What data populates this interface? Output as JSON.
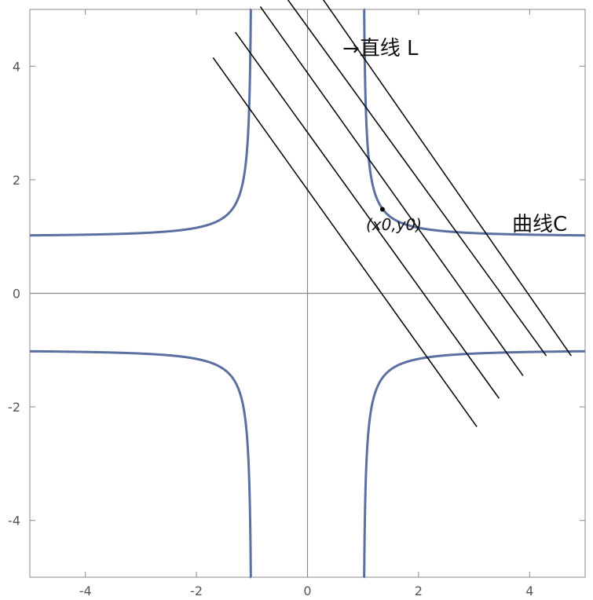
{
  "chart_data": {
    "type": "line",
    "xlim": [
      -5,
      5
    ],
    "ylim": [
      -5,
      5
    ],
    "x_ticks": [
      -4,
      -2,
      0,
      2,
      4
    ],
    "y_ticks": [
      4,
      2,
      0,
      -2,
      -4
    ],
    "x_tick_labels": [
      "-4",
      "-2",
      "0",
      "2",
      "4"
    ],
    "y_tick_labels": [
      "4",
      "2",
      "0",
      "-2",
      "-4"
    ],
    "grid": false,
    "frame": true,
    "series": [
      {
        "curve": "y = |x| / sqrt(x^2 - 1)",
        "branches": [
          {
            "x_from": -5,
            "x_to": -1.02,
            "sign": 1
          },
          {
            "x_from": 1.02,
            "x_to": 5,
            "sign": 1
          },
          {
            "x_from": -5,
            "x_to": -1.02,
            "sign": -1
          },
          {
            "x_from": 1.02,
            "x_to": 5,
            "sign": -1
          }
        ],
        "color": "#5b70a0"
      }
    ],
    "parallel_lines": [
      {
        "x1": 0.05,
        "y1": 5.5,
        "x2": 4.75,
        "y2": -1.1
      },
      {
        "x1": -0.45,
        "y1": 5.3,
        "x2": 4.3,
        "y2": -1.1
      },
      {
        "x1": -0.85,
        "y1": 5.05,
        "x2": 3.88,
        "y2": -1.45
      },
      {
        "x1": -1.3,
        "y1": 4.6,
        "x2": 3.45,
        "y2": -1.85
      },
      {
        "x1": -1.7,
        "y1": 4.15,
        "x2": 3.05,
        "y2": -2.35
      }
    ],
    "point": {
      "x": 1.35,
      "y": 1.48
    },
    "annotations": {
      "line_label": "→直线 L",
      "curve_label": "曲线C",
      "point_label": "(x0,y0)"
    }
  },
  "colors": {
    "curve": "#5b70a0",
    "axes": "#888888",
    "lines": "#000000"
  }
}
